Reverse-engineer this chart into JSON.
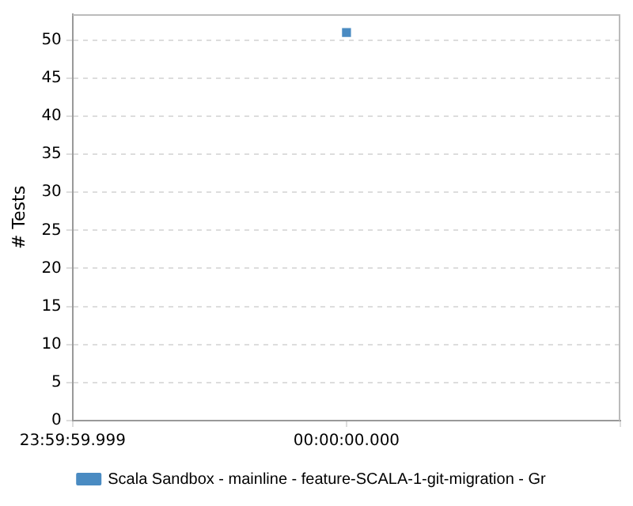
{
  "chart_data": {
    "type": "line",
    "ylabel": "# Tests",
    "categories": [
      "23:59:59.999",
      "00:00:00.000",
      null
    ],
    "series": [
      {
        "name": "Scala Sandbox - mainline - feature-SCALA-1-git-migration - Gr",
        "color": "#4a8bc2",
        "values": [
          null,
          51,
          null
        ]
      }
    ],
    "ylim": [
      0,
      53.4
    ],
    "yticks": [
      0,
      5,
      10,
      15,
      20,
      25,
      30,
      35,
      40,
      45,
      50
    ],
    "grid": "y",
    "legend": "bottom",
    "marker": "square"
  }
}
